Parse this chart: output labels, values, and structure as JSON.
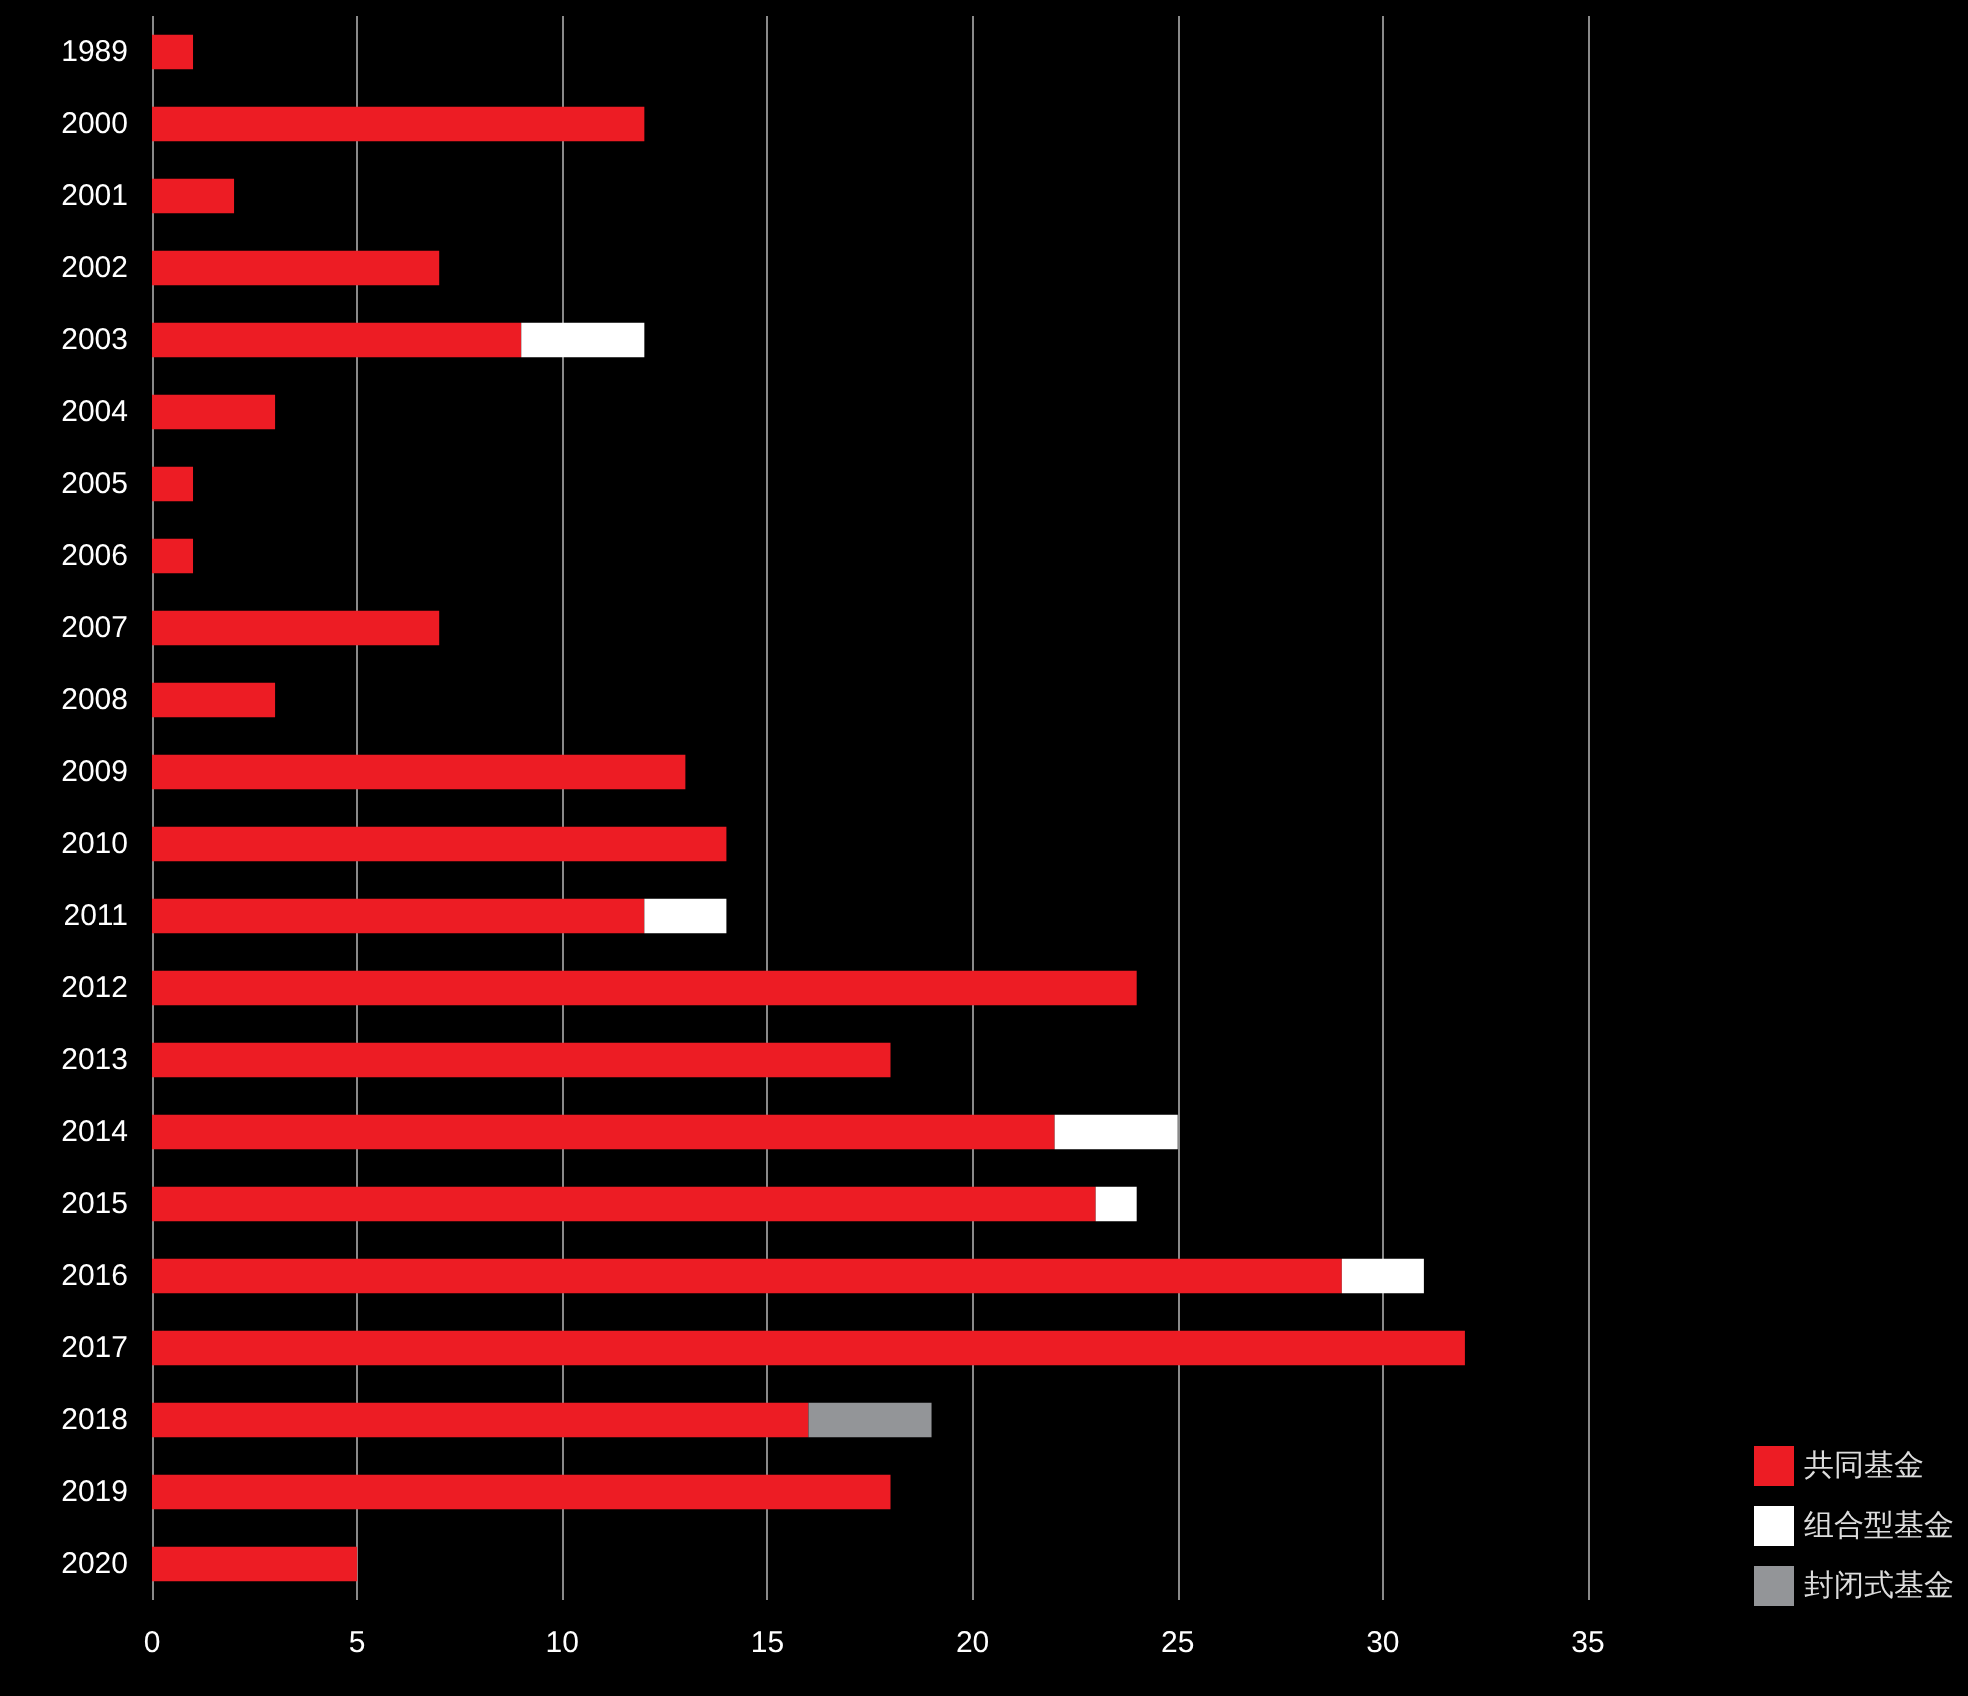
{
  "chart_data": {
    "type": "bar",
    "orientation": "horizontal",
    "stacked": true,
    "categories": [
      "1989",
      "2000",
      "2001",
      "2002",
      "2003",
      "2004",
      "2005",
      "2006",
      "2007",
      "2008",
      "2009",
      "2010",
      "2011",
      "2012",
      "2013",
      "2014",
      "2015",
      "2016",
      "2017",
      "2018",
      "2019",
      "2020"
    ],
    "series": [
      {
        "name": "共同基金",
        "color": "#ed1c24",
        "values": [
          1,
          12,
          2,
          7,
          9,
          3,
          1,
          1,
          7,
          3,
          13,
          14,
          12,
          24,
          18,
          22,
          23,
          29,
          32,
          16,
          18,
          5
        ]
      },
      {
        "name": "组合型基金",
        "color": "#ffffff",
        "values": [
          null,
          null,
          null,
          null,
          3,
          null,
          null,
          null,
          null,
          null,
          null,
          null,
          2,
          null,
          null,
          3,
          1,
          2,
          null,
          null,
          null,
          null
        ]
      },
      {
        "name": "封闭式基金",
        "color": "#939598",
        "values": [
          null,
          null,
          null,
          null,
          null,
          null,
          null,
          null,
          null,
          null,
          null,
          null,
          null,
          null,
          null,
          null,
          null,
          null,
          null,
          3,
          null,
          null
        ]
      }
    ],
    "xlim": [
      0,
      35
    ],
    "xticks": [
      0,
      5,
      10,
      15,
      20,
      25,
      30,
      35
    ],
    "grid": "x",
    "legend": "bottom right"
  }
}
